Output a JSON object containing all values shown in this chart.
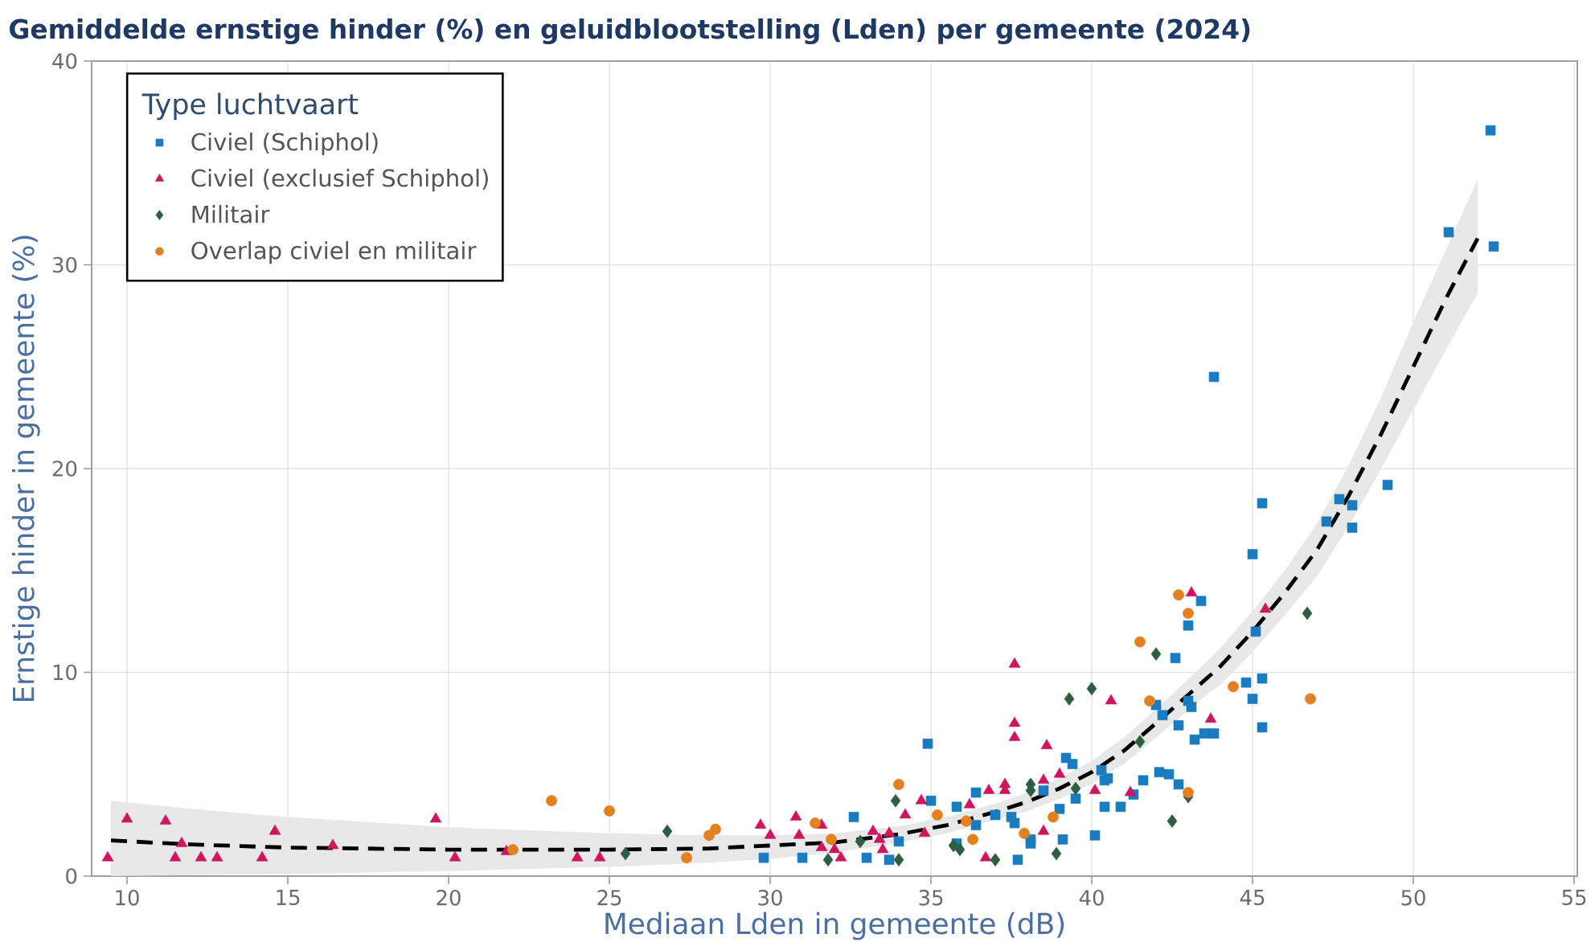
{
  "chart_data": {
    "type": "scatter",
    "title": "Gemiddelde ernstige hinder (%) en geluidblootstelling (Lden) per gemeente (2024)",
    "xlabel": "Mediaan Lden in gemeente (dB)",
    "ylabel": "Ernstige hinder in gemeente (%)",
    "legend_title": "Type luchtvaart",
    "xlim": [
      8.9,
      55.1
    ],
    "ylim": [
      0,
      40
    ],
    "xticks": [
      10,
      15,
      20,
      25,
      30,
      35,
      40,
      45,
      50,
      55
    ],
    "yticks": [
      0,
      10,
      20,
      30,
      40
    ],
    "grid": true,
    "legend": "top left",
    "series": [
      {
        "name": "Civiel (Schiphol)",
        "color": "#1a7bbf",
        "marker": "square",
        "x": [
          29.8,
          31.0,
          32.6,
          33.0,
          33.7,
          34.0,
          34.9,
          35.0,
          35.8,
          35.8,
          36.4,
          36.4,
          37.0,
          37.5,
          37.6,
          37.7,
          38.1,
          38.1,
          38.5,
          39.0,
          39.1,
          39.2,
          39.4,
          39.5,
          40.1,
          40.3,
          40.4,
          40.4,
          40.9,
          40.5,
          41.6,
          42.1,
          42.4,
          42.7,
          41.3,
          42.0,
          42.2,
          43.0,
          43.1,
          42.7,
          43.2,
          43.5,
          43.8,
          42.6,
          43.0,
          43.4,
          45.0,
          45.1,
          44.8,
          45.3,
          45.0,
          45.3,
          43.8,
          45.3,
          47.3,
          47.7,
          48.1,
          48.1,
          49.2,
          51.1,
          52.5,
          52.4
        ],
        "values": [
          0.9,
          0.9,
          2.9,
          0.9,
          0.8,
          1.7,
          6.5,
          3.7,
          3.4,
          1.6,
          4.1,
          2.5,
          3.0,
          2.9,
          2.6,
          0.8,
          1.8,
          1.6,
          4.2,
          3.3,
          1.8,
          5.8,
          5.5,
          3.8,
          2.0,
          5.2,
          4.7,
          3.4,
          3.4,
          4.8,
          4.7,
          5.1,
          5.0,
          4.5,
          4.0,
          8.4,
          7.9,
          8.6,
          8.3,
          7.4,
          6.7,
          7.0,
          7.0,
          10.7,
          12.3,
          13.5,
          15.8,
          12.0,
          9.5,
          9.7,
          8.7,
          7.3,
          24.5,
          18.3,
          17.4,
          18.5,
          18.2,
          17.1,
          19.2,
          31.6,
          30.9,
          36.6
        ]
      },
      {
        "name": "Civiel (exclusief Schiphol)",
        "color": "#cf1460",
        "marker": "triangle",
        "x": [
          9.4,
          10.0,
          11.2,
          11.7,
          11.5,
          12.3,
          12.8,
          14.2,
          14.6,
          16.4,
          19.6,
          20.2,
          21.8,
          24.0,
          24.7,
          29.7,
          30.0,
          30.8,
          30.9,
          31.6,
          31.6,
          32.0,
          32.2,
          33.2,
          33.4,
          33.5,
          33.7,
          34.2,
          34.7,
          34.8,
          36.2,
          36.7,
          36.8,
          37.3,
          37.3,
          37.6,
          37.6,
          37.6,
          38.6,
          38.5,
          38.5,
          39.0,
          40.1,
          40.6,
          41.2,
          43.1,
          45.4,
          43.7
        ],
        "values": [
          0.9,
          2.8,
          2.7,
          1.6,
          0.9,
          0.9,
          0.9,
          0.9,
          2.2,
          1.5,
          2.8,
          0.9,
          1.2,
          0.9,
          0.9,
          2.5,
          2.0,
          2.9,
          2.0,
          2.5,
          1.4,
          1.3,
          0.9,
          2.2,
          1.8,
          1.3,
          2.1,
          3.0,
          3.7,
          2.1,
          3.5,
          0.9,
          4.2,
          4.5,
          4.2,
          10.4,
          7.5,
          6.8,
          6.4,
          4.7,
          2.2,
          5.0,
          4.2,
          8.6,
          4.1,
          13.9,
          13.1,
          7.7
        ]
      },
      {
        "name": "Militair",
        "color": "#2e5e40",
        "marker": "diamond",
        "x": [
          25.5,
          26.8,
          31.8,
          32.8,
          33.9,
          34.0,
          35.7,
          35.9,
          37.0,
          38.1,
          38.1,
          38.9,
          39.3,
          39.5,
          40.0,
          41.5,
          42.0,
          42.5,
          43.0,
          46.7
        ],
        "values": [
          1.1,
          2.2,
          0.8,
          1.7,
          3.7,
          0.8,
          1.5,
          1.3,
          0.8,
          4.5,
          4.2,
          1.1,
          8.7,
          4.3,
          9.2,
          6.6,
          10.9,
          2.7,
          3.9,
          12.9
        ]
      },
      {
        "name": "Overlap civiel en militair",
        "color": "#e3801f",
        "marker": "circle",
        "x": [
          22.0,
          23.2,
          25.0,
          27.4,
          28.1,
          28.3,
          31.4,
          31.9,
          34.0,
          35.2,
          36.1,
          36.3,
          37.9,
          38.8,
          41.5,
          41.8,
          42.7,
          43.0,
          43.0,
          44.4,
          46.8
        ],
        "values": [
          1.3,
          3.7,
          3.2,
          0.9,
          2.0,
          2.3,
          2.6,
          1.8,
          4.5,
          3.0,
          2.7,
          1.8,
          2.1,
          2.9,
          11.5,
          8.6,
          13.8,
          12.9,
          4.1,
          9.3,
          8.7
        ]
      },
      {
        "type": "line",
        "color": "#000000",
        "line_style": "dashed",
        "marker": "none",
        "x": [
          9.5,
          12,
          15,
          20,
          25,
          28,
          30,
          32,
          34,
          35,
          35.5,
          37,
          38,
          39,
          40,
          41,
          42,
          43.5,
          44,
          45,
          46,
          47,
          48,
          49,
          50,
          51,
          52
        ],
        "values": [
          1.75,
          1.55,
          1.4,
          1.3,
          1.3,
          1.35,
          1.5,
          1.65,
          2.05,
          2.35,
          2.5,
          3.15,
          3.65,
          4.3,
          5.1,
          6.15,
          7.5,
          9.6,
          10.3,
          12.0,
          13.9,
          16.0,
          18.7,
          21.7,
          25.0,
          28.3,
          31.3
        ],
        "lower": [
          0.0,
          0.05,
          0.1,
          0.25,
          0.45,
          0.65,
          0.85,
          1.15,
          1.65,
          1.95,
          2.1,
          2.75,
          3.2,
          3.8,
          4.55,
          5.5,
          6.8,
          8.8,
          9.4,
          11.0,
          12.8,
          14.7,
          17.2,
          20.0,
          22.9,
          25.8,
          28.6
        ],
        "upper": [
          3.7,
          3.3,
          2.9,
          2.4,
          2.1,
          2.0,
          2.0,
          2.1,
          2.45,
          2.75,
          2.9,
          3.55,
          4.1,
          4.8,
          5.65,
          6.8,
          8.2,
          10.4,
          11.2,
          13.0,
          15.0,
          17.3,
          20.2,
          23.5,
          27.2,
          30.7,
          34.2
        ]
      }
    ]
  }
}
